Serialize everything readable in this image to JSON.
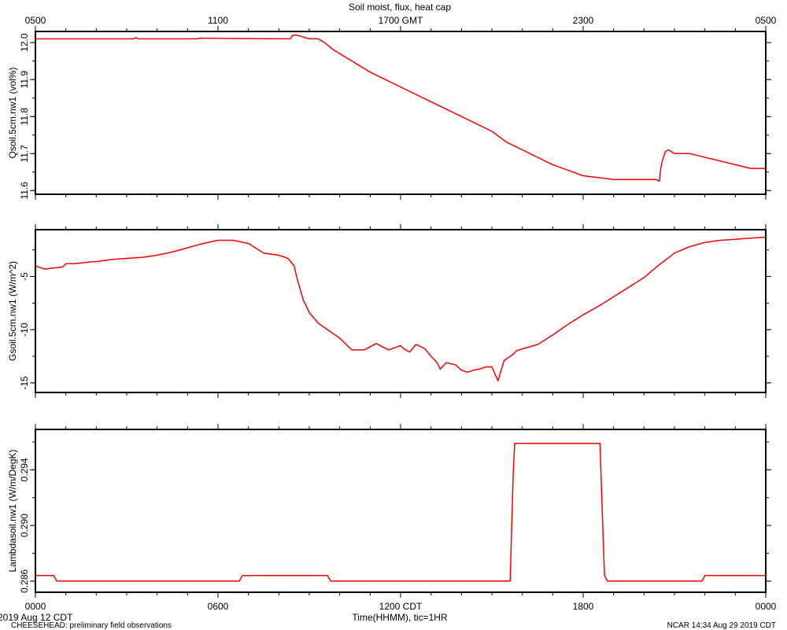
{
  "title": "Soil moist, flux, heat cap",
  "top_axis": {
    "ticks": [
      "0500",
      "1100",
      "1700 GMT",
      "2300",
      "0500"
    ]
  },
  "bottom_axis": {
    "ticks": [
      "0000",
      "0600",
      "1200 CDT",
      "1800",
      "0000"
    ],
    "label": "Time(HHMM), tic=1HR"
  },
  "footer": {
    "date": "2019 Aug 12 CDT",
    "project": "CHEESEHEAD: preliminary field observations",
    "stamp": "NCAR 14:34 Aug 29 2019 CDT"
  },
  "colors": {
    "series": "#ff0000",
    "axes": "#000000"
  },
  "chart_data": [
    {
      "type": "line",
      "ylabel": "Qsoil.5cm.nw1 (vol%)",
      "xlim": [
        0,
        24
      ],
      "ylim": [
        11.59,
        12.03
      ],
      "yticks": [
        11.6,
        11.7,
        11.8,
        11.9,
        12.0
      ],
      "ytick_labels": [
        "11.6",
        "11.7",
        "11.8",
        "11.9",
        "12.0"
      ],
      "series": [
        {
          "x": [
            0,
            3.2,
            3.3,
            3.4,
            5.3,
            5.4,
            8.38,
            8.45,
            8.6,
            8.8,
            9.0,
            9.3,
            9.5,
            9.8,
            10.2,
            10.6,
            11.0,
            11.5,
            12.0,
            12.5,
            13.0,
            13.5,
            14.0,
            14.5,
            15.0,
            15.5,
            16.0,
            16.5,
            17.0,
            17.5,
            18.0,
            18.5,
            19.0,
            19.5,
            20.0,
            20.3,
            20.4,
            20.5,
            20.55,
            20.6,
            20.7,
            20.8,
            21.0,
            21.5,
            22.0,
            22.5,
            23.0,
            23.5,
            23.7,
            24.0
          ],
          "y": [
            12.01,
            12.01,
            12.013,
            12.01,
            12.01,
            12.012,
            12.01,
            12.02,
            12.02,
            12.015,
            12.01,
            12.01,
            12.0,
            11.98,
            11.96,
            11.94,
            11.92,
            11.9,
            11.88,
            11.86,
            11.84,
            11.82,
            11.8,
            11.78,
            11.76,
            11.73,
            11.71,
            11.69,
            11.67,
            11.655,
            11.64,
            11.635,
            11.63,
            11.63,
            11.63,
            11.63,
            11.63,
            11.625,
            11.66,
            11.68,
            11.705,
            11.71,
            11.7,
            11.7,
            11.69,
            11.68,
            11.67,
            11.66,
            11.66,
            11.66
          ]
        }
      ]
    },
    {
      "type": "line",
      "ylabel": "Gsoil.5cm.nw1 (W/m^2)",
      "xlim": [
        0,
        24
      ],
      "ylim": [
        -15.9,
        -0.6
      ],
      "yticks": [
        -5,
        -10,
        -15
      ],
      "ytick_labels": [
        "-5",
        "-10",
        "-15"
      ],
      "series": [
        {
          "x": [
            0,
            0.3,
            0.6,
            0.9,
            1.0,
            1.3,
            1.6,
            1.9,
            2.0,
            2.5,
            3.0,
            3.5,
            4.0,
            4.5,
            5.0,
            5.5,
            6.0,
            6.5,
            7.0,
            7.5,
            8.0,
            8.3,
            8.5,
            8.6,
            8.7,
            8.8,
            9.0,
            9.3,
            9.6,
            10.0,
            10.4,
            10.8,
            11.2,
            11.6,
            12.0,
            12.1,
            12.3,
            12.5,
            12.6,
            12.8,
            13.0,
            13.2,
            13.3,
            13.5,
            13.8,
            14.0,
            14.2,
            14.4,
            14.6,
            14.8,
            15.0,
            15.2,
            15.4,
            15.6,
            15.7,
            15.8,
            16.0,
            16.5,
            17.0,
            17.5,
            18.0,
            18.5,
            19.0,
            19.5,
            20.0,
            20.5,
            21.0,
            21.5,
            22.0,
            22.5,
            23.0,
            23.5,
            24.0
          ],
          "y": [
            -4.0,
            -4.3,
            -4.2,
            -4.1,
            -3.8,
            -3.8,
            -3.7,
            -3.6,
            -3.6,
            -3.4,
            -3.3,
            -3.2,
            -3.0,
            -2.7,
            -2.3,
            -1.9,
            -1.6,
            -1.6,
            -1.9,
            -2.8,
            -3.0,
            -3.3,
            -4.0,
            -5.2,
            -6.2,
            -7.2,
            -8.4,
            -9.4,
            -10.0,
            -10.8,
            -11.9,
            -11.9,
            -11.3,
            -11.9,
            -11.5,
            -11.8,
            -12.1,
            -11.4,
            -11.5,
            -11.8,
            -12.5,
            -13.1,
            -13.7,
            -13.1,
            -13.3,
            -13.8,
            -14.0,
            -13.8,
            -13.7,
            -13.5,
            -13.5,
            -14.8,
            -12.9,
            -12.5,
            -12.3,
            -12.0,
            -11.8,
            -11.4,
            -10.5,
            -9.5,
            -8.6,
            -7.8,
            -6.9,
            -6.0,
            -5.1,
            -3.9,
            -2.8,
            -2.2,
            -1.8,
            -1.6,
            -1.5,
            -1.4,
            -1.3
          ]
        }
      ]
    },
    {
      "type": "line",
      "ylabel": "Lambdasoil.nw1 (W/m/DegK)",
      "xlim": [
        0,
        24
      ],
      "ylim": [
        0.2852,
        0.2969
      ],
      "yticks": [
        0.286,
        0.29,
        0.294
      ],
      "ytick_labels": [
        "0.286",
        "0.290",
        "0.294"
      ],
      "series": [
        {
          "x": [
            0,
            0.6,
            0.7,
            6.7,
            6.8,
            9.6,
            9.7,
            15.6,
            15.7,
            15.75,
            18.55,
            18.7,
            18.8,
            21.9,
            22.0,
            24.0
          ],
          "y": [
            0.2864,
            0.2864,
            0.286,
            0.286,
            0.2864,
            0.2864,
            0.286,
            0.286,
            0.2937,
            0.2959,
            0.2959,
            0.2864,
            0.286,
            0.286,
            0.2864,
            0.2864
          ]
        }
      ]
    }
  ]
}
